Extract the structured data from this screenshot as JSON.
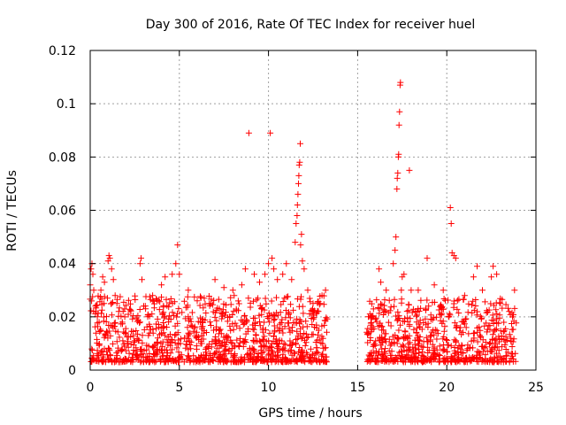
{
  "chart_data": {
    "type": "scatter",
    "title": "Day 300 of 2016, Rate Of TEC Index for receiver huel",
    "xlabel": "GPS time / hours",
    "ylabel": "ROTI / TECUs",
    "xlim": [
      0,
      25
    ],
    "ylim": [
      0,
      0.12
    ],
    "xticks": [
      0,
      5,
      10,
      15,
      20,
      25
    ],
    "xtick_labels": [
      "0",
      "5",
      "10",
      "15",
      "20",
      "25"
    ],
    "yticks": [
      0,
      0.02,
      0.04,
      0.06,
      0.08,
      0.1,
      0.12
    ],
    "ytick_labels": [
      "0",
      "0.02",
      "0.04",
      "0.06",
      "0.08",
      "0.1",
      "0.12"
    ],
    "grid": true,
    "marker": "+",
    "color": "#ff0000",
    "data_gap": [
      13.3,
      15.5
    ],
    "series": [
      {
        "name": "ROTI",
        "points": [
          [
            0.0,
            0.032
          ],
          [
            0.05,
            0.038
          ],
          [
            0.1,
            0.04
          ],
          [
            0.15,
            0.036
          ],
          [
            0.2,
            0.03
          ],
          [
            0.3,
            0.024
          ],
          [
            0.4,
            0.02
          ],
          [
            0.5,
            0.018
          ],
          [
            0.6,
            0.03
          ],
          [
            0.7,
            0.035
          ],
          [
            0.8,
            0.033
          ],
          [
            1.0,
            0.041
          ],
          [
            1.05,
            0.043
          ],
          [
            1.1,
            0.042
          ],
          [
            1.2,
            0.038
          ],
          [
            1.3,
            0.034
          ],
          [
            1.4,
            0.028
          ],
          [
            1.5,
            0.025
          ],
          [
            1.6,
            0.022
          ],
          [
            1.8,
            0.018
          ],
          [
            2.0,
            0.014
          ],
          [
            2.5,
            0.011
          ],
          [
            2.8,
            0.04
          ],
          [
            2.85,
            0.042
          ],
          [
            2.9,
            0.034
          ],
          [
            3.0,
            0.024
          ],
          [
            3.5,
            0.028
          ],
          [
            4.0,
            0.032
          ],
          [
            4.2,
            0.035
          ],
          [
            4.6,
            0.036
          ],
          [
            4.8,
            0.04
          ],
          [
            4.9,
            0.047
          ],
          [
            5.0,
            0.036
          ],
          [
            5.5,
            0.03
          ],
          [
            6.0,
            0.026
          ],
          [
            6.4,
            0.027
          ],
          [
            7.0,
            0.034
          ],
          [
            7.5,
            0.031
          ],
          [
            8.0,
            0.03
          ],
          [
            8.5,
            0.032
          ],
          [
            8.7,
            0.038
          ],
          [
            8.9,
            0.089
          ],
          [
            9.2,
            0.036
          ],
          [
            9.5,
            0.033
          ],
          [
            9.8,
            0.036
          ],
          [
            10.0,
            0.04
          ],
          [
            10.1,
            0.089
          ],
          [
            10.2,
            0.042
          ],
          [
            10.3,
            0.038
          ],
          [
            10.5,
            0.034
          ],
          [
            10.8,
            0.036
          ],
          [
            11.0,
            0.04
          ],
          [
            11.3,
            0.034
          ],
          [
            11.5,
            0.048
          ],
          [
            11.55,
            0.055
          ],
          [
            11.6,
            0.058
          ],
          [
            11.62,
            0.062
          ],
          [
            11.65,
            0.066
          ],
          [
            11.68,
            0.07
          ],
          [
            11.7,
            0.073
          ],
          [
            11.72,
            0.077
          ],
          [
            11.75,
            0.078
          ],
          [
            11.78,
            0.085
          ],
          [
            11.8,
            0.047
          ],
          [
            11.85,
            0.051
          ],
          [
            11.9,
            0.041
          ],
          [
            12.0,
            0.038
          ],
          [
            12.2,
            0.03
          ],
          [
            12.5,
            0.025
          ],
          [
            12.8,
            0.022
          ],
          [
            13.0,
            0.028
          ],
          [
            13.2,
            0.03
          ],
          [
            15.6,
            0.02
          ],
          [
            15.8,
            0.02
          ],
          [
            16.0,
            0.019
          ],
          [
            16.2,
            0.038
          ],
          [
            16.3,
            0.033
          ],
          [
            16.6,
            0.03
          ],
          [
            17.0,
            0.04
          ],
          [
            17.1,
            0.045
          ],
          [
            17.15,
            0.05
          ],
          [
            17.2,
            0.068
          ],
          [
            17.22,
            0.072
          ],
          [
            17.25,
            0.074
          ],
          [
            17.28,
            0.08
          ],
          [
            17.3,
            0.081
          ],
          [
            17.32,
            0.092
          ],
          [
            17.35,
            0.097
          ],
          [
            17.38,
            0.107
          ],
          [
            17.4,
            0.108
          ],
          [
            17.45,
            0.03
          ],
          [
            17.5,
            0.035
          ],
          [
            17.6,
            0.036
          ],
          [
            17.9,
            0.075
          ],
          [
            18.0,
            0.03
          ],
          [
            18.4,
            0.03
          ],
          [
            18.9,
            0.042
          ],
          [
            19.3,
            0.032
          ],
          [
            19.8,
            0.03
          ],
          [
            20.2,
            0.061
          ],
          [
            20.25,
            0.055
          ],
          [
            20.3,
            0.044
          ],
          [
            20.4,
            0.043
          ],
          [
            20.5,
            0.042
          ],
          [
            21.0,
            0.028
          ],
          [
            21.5,
            0.035
          ],
          [
            21.7,
            0.039
          ],
          [
            22.0,
            0.03
          ],
          [
            22.5,
            0.035
          ],
          [
            22.6,
            0.039
          ],
          [
            22.8,
            0.036
          ],
          [
            23.0,
            0.025
          ],
          [
            23.5,
            0.022
          ],
          [
            23.8,
            0.03
          ]
        ],
        "baseline_bands": [
          {
            "x_start": 0.0,
            "x_end": 13.3,
            "low": 0.003,
            "high": 0.028
          },
          {
            "x_start": 15.5,
            "x_end": 23.9,
            "low": 0.003,
            "high": 0.027
          }
        ]
      }
    ]
  }
}
